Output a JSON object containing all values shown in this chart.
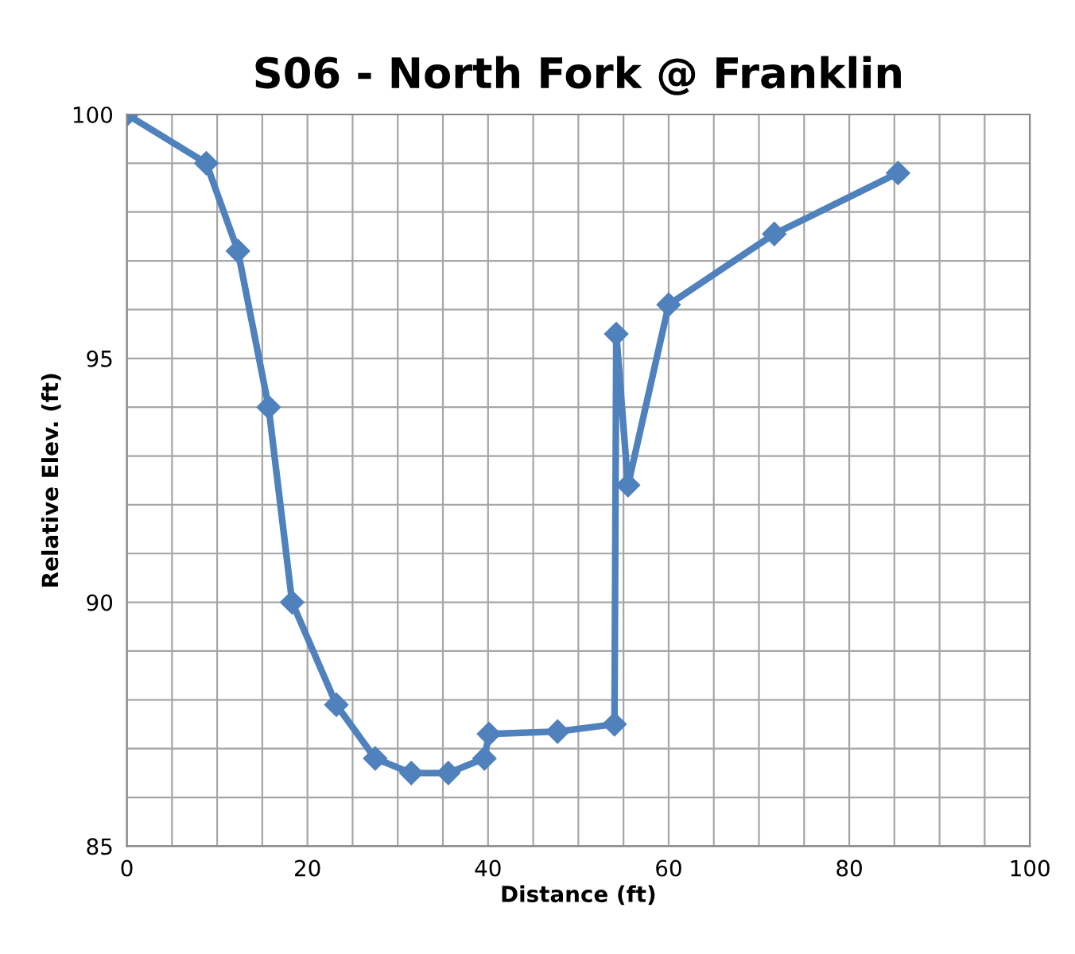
{
  "chart_data": {
    "type": "line",
    "title": "S06 - North Fork @ Franklin",
    "xlabel": "Distance (ft)",
    "ylabel": "Relative Elev. (ft)",
    "x": [
      0,
      8.8,
      12.3,
      15.7,
      18.3,
      23.2,
      27.5,
      31.5,
      35.6,
      39.6,
      40.1,
      47.7,
      54.0,
      54.2,
      55.5,
      60.0,
      71.7,
      85.4
    ],
    "series": [
      {
        "color": "#4f81bd",
        "values": [
          100,
          99.0,
          97.2,
          94.0,
          90.0,
          87.9,
          86.8,
          86.5,
          86.5,
          86.8,
          87.3,
          87.35,
          87.5,
          95.5,
          92.4,
          96.1,
          97.55,
          98.8
        ]
      }
    ],
    "xlim": [
      0,
      100
    ],
    "ylim": [
      85,
      100
    ],
    "xticks": [
      0,
      {
        "value": 5,
        "label": null
      },
      {
        "value": 10,
        "label": null
      },
      {
        "value": 15,
        "label": null
      },
      20,
      {
        "value": 25,
        "label": null
      },
      {
        "value": 30,
        "label": null
      },
      {
        "value": 35,
        "label": null
      },
      40,
      {
        "value": 45,
        "label": null
      },
      {
        "value": 50,
        "label": null
      },
      {
        "value": 55,
        "label": null
      },
      60,
      {
        "value": 65,
        "label": null
      },
      {
        "value": 70,
        "label": null
      },
      {
        "value": 75,
        "label": null
      },
      80,
      {
        "value": 85,
        "label": null
      },
      {
        "value": 90,
        "label": null
      },
      {
        "value": 95,
        "label": null
      },
      100
    ],
    "yticks": [
      85,
      {
        "value": 86,
        "label": null
      },
      {
        "value": 87,
        "label": null
      },
      {
        "value": 88,
        "label": null
      },
      {
        "value": 89,
        "label": null
      },
      90,
      {
        "value": 91,
        "label": null
      },
      {
        "value": 92,
        "label": null
      },
      {
        "value": 93,
        "label": null
      },
      {
        "value": 94,
        "label": null
      },
      95,
      {
        "value": 96,
        "label": null
      },
      {
        "value": 97,
        "label": null
      },
      {
        "value": 98,
        "label": null
      },
      {
        "value": 99,
        "label": null
      },
      100
    ],
    "grid": true,
    "marker": "diamond",
    "line_style": "solid",
    "legend": false
  }
}
